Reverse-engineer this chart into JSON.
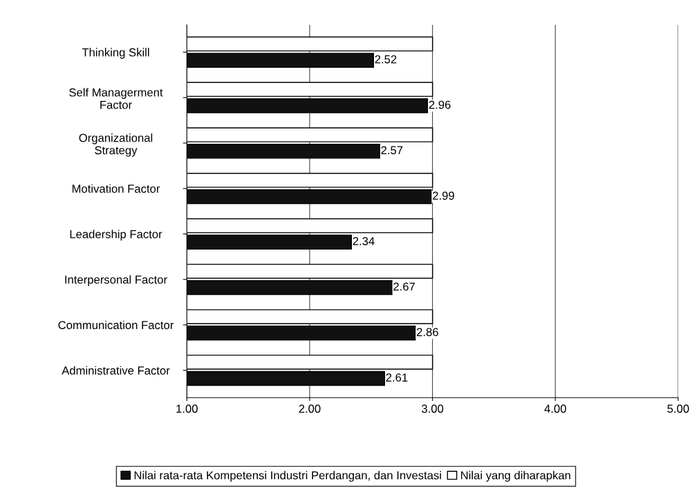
{
  "chart_data": {
    "type": "bar",
    "orientation": "horizontal",
    "categories": [
      "Thinking Skill",
      "Self Managerment\nFactor",
      "Organizational\nStrategy",
      "Motivation Factor",
      "Leadership Factor",
      "Interpersonal Factor",
      "Communication Factor",
      "Administrative Factor"
    ],
    "series": [
      {
        "name": "Nilai rata-rata Kompetensi Industri Perdangan, dan Investasi",
        "color": "#111111",
        "values": [
          2.52,
          2.96,
          2.57,
          2.99,
          2.34,
          2.67,
          2.86,
          2.61
        ],
        "value_labels": [
          "2.52",
          "2.96",
          "2.57",
          "2.99",
          "2.34",
          "2.67",
          "2.86",
          "2.61"
        ]
      },
      {
        "name": "Nilai yang diharapkan",
        "color": "#ffffff",
        "values": [
          3.0,
          3.0,
          3.0,
          3.0,
          3.0,
          3.0,
          3.0,
          3.0
        ]
      }
    ],
    "xlim": [
      1,
      5
    ],
    "xticks": [
      {
        "value": 1,
        "label": "1.00"
      },
      {
        "value": 2,
        "label": "2.00"
      },
      {
        "value": 3,
        "label": "3.00"
      },
      {
        "value": 4,
        "label": "4.00"
      },
      {
        "value": 5,
        "label": "5.00"
      }
    ],
    "grid": "x",
    "legend": "bottom"
  }
}
